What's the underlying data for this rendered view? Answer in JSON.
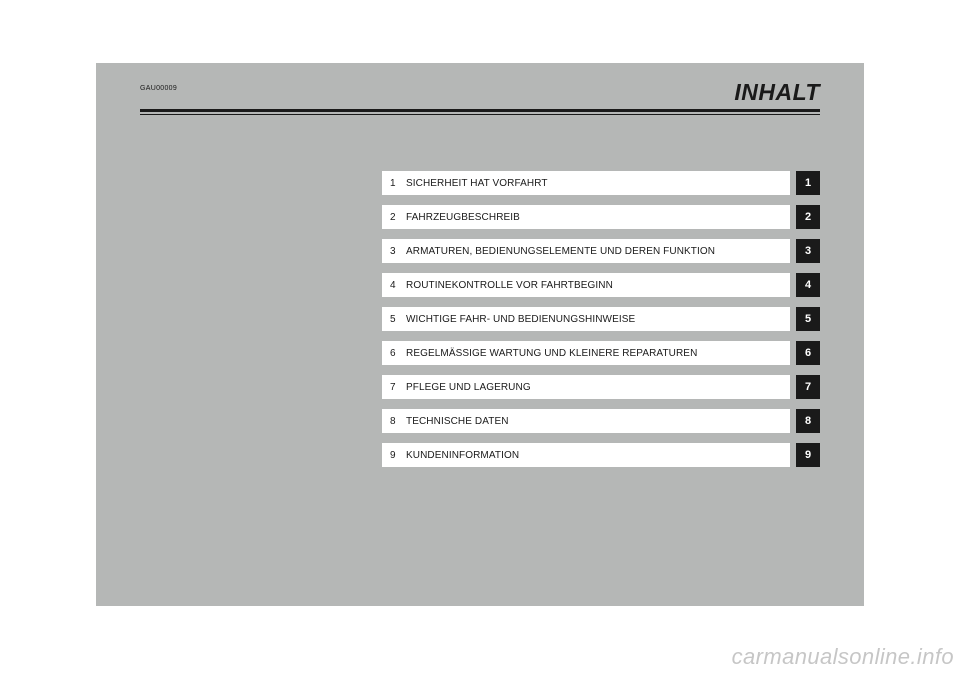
{
  "doc_code": "GAU00009",
  "page_title": "INHALT",
  "toc_background": "#b5b7b6",
  "row_background": "#ffffff",
  "tab_background": "#1a1a1a",
  "tab_text_color": "#ffffff",
  "rule_color": "#1a1a1a",
  "toc": [
    {
      "num": "1",
      "label": "SICHERHEIT HAT VORFAHRT",
      "tab": "1"
    },
    {
      "num": "2",
      "label": "FAHRZEUGBESCHREIB",
      "tab": "2"
    },
    {
      "num": "3",
      "label": "ARMATUREN, BEDIENUNGSELEMENTE UND DEREN FUNKTION",
      "tab": "3"
    },
    {
      "num": "4",
      "label": "ROUTINEKONTROLLE VOR FAHRTBEGINN",
      "tab": "4"
    },
    {
      "num": "5",
      "label": "WICHTIGE FAHR- UND BEDIENUNGSHINWEISE",
      "tab": "5"
    },
    {
      "num": "6",
      "label": "REGELMÄSSIGE WARTUNG UND KLEINERE REPARATUREN",
      "tab": "6"
    },
    {
      "num": "7",
      "label": "PFLEGE UND LAGERUNG",
      "tab": "7"
    },
    {
      "num": "8",
      "label": "TECHNISCHE DATEN",
      "tab": "8"
    },
    {
      "num": "9",
      "label": "KUNDENINFORMATION",
      "tab": "9"
    }
  ],
  "watermark": "carmanualsonline.info"
}
